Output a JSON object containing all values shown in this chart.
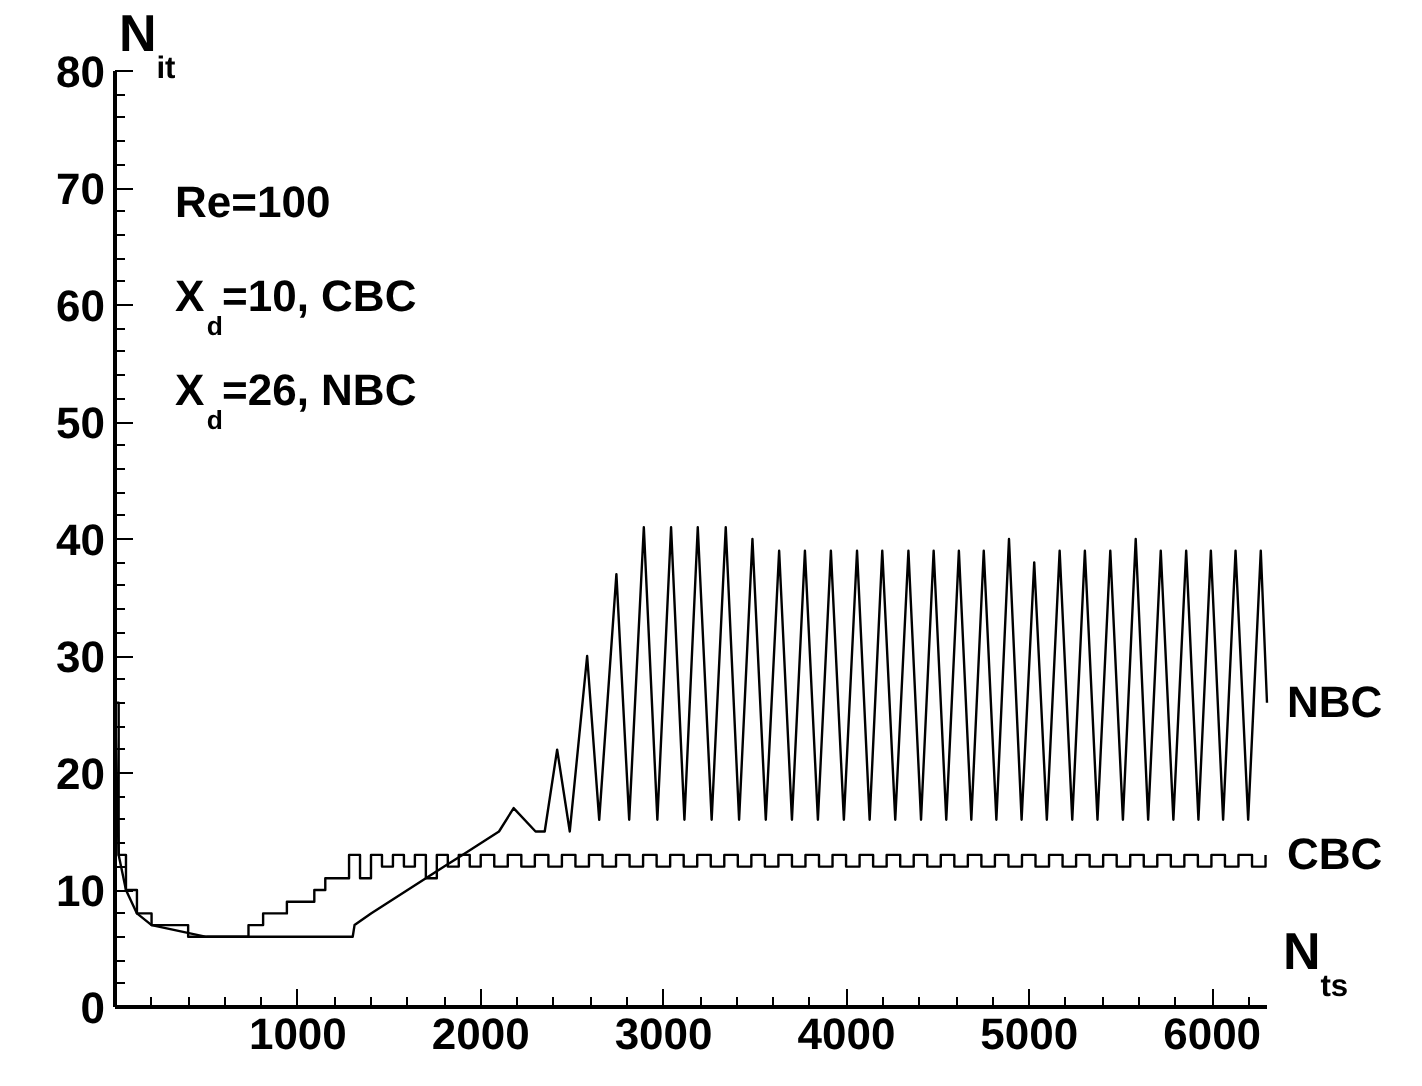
{
  "chart_data": {
    "type": "line",
    "xlabel": "N$_{ts}$",
    "ylabel": "N$_{it}$",
    "annotations": [
      "Re=100",
      "X$_{d}$=10, CBC",
      "X$_{d}$=26, NBC"
    ],
    "xlim": [
      0,
      6300
    ],
    "ylim": [
      0,
      80
    ],
    "xticks": [
      {
        "value": 200,
        "label": null
      },
      {
        "value": 400,
        "label": null
      },
      {
        "value": 600,
        "label": null
      },
      {
        "value": 800,
        "label": null
      },
      1000,
      {
        "value": 1200,
        "label": null
      },
      {
        "value": 1400,
        "label": null
      },
      {
        "value": 1600,
        "label": null
      },
      {
        "value": 1800,
        "label": null
      },
      2000,
      {
        "value": 2200,
        "label": null
      },
      {
        "value": 2400,
        "label": null
      },
      {
        "value": 2600,
        "label": null
      },
      {
        "value": 2800,
        "label": null
      },
      3000,
      {
        "value": 3200,
        "label": null
      },
      {
        "value": 3400,
        "label": null
      },
      {
        "value": 3600,
        "label": null
      },
      {
        "value": 3800,
        "label": null
      },
      4000,
      {
        "value": 4200,
        "label": null
      },
      {
        "value": 4400,
        "label": null
      },
      {
        "value": 4600,
        "label": null
      },
      {
        "value": 4800,
        "label": null
      },
      5000,
      {
        "value": 5200,
        "label": null
      },
      {
        "value": 5400,
        "label": null
      },
      {
        "value": 5600,
        "label": null
      },
      {
        "value": 5800,
        "label": null
      },
      6000,
      {
        "value": 6200,
        "label": null
      }
    ],
    "yticks": [
      0,
      {
        "value": 2,
        "label": null
      },
      {
        "value": 4,
        "label": null
      },
      {
        "value": 6,
        "label": null
      },
      {
        "value": 8,
        "label": null
      },
      10,
      {
        "value": 12,
        "label": null
      },
      {
        "value": 14,
        "label": null
      },
      {
        "value": 16,
        "label": null
      },
      {
        "value": 18,
        "label": null
      },
      20,
      {
        "value": 22,
        "label": null
      },
      {
        "value": 24,
        "label": null
      },
      {
        "value": 26,
        "label": null
      },
      {
        "value": 28,
        "label": null
      },
      30,
      {
        "value": 32,
        "label": null
      },
      {
        "value": 34,
        "label": null
      },
      {
        "value": 36,
        "label": null
      },
      {
        "value": 38,
        "label": null
      },
      40,
      {
        "value": 42,
        "label": null
      },
      {
        "value": 44,
        "label": null
      },
      {
        "value": 46,
        "label": null
      },
      {
        "value": 48,
        "label": null
      },
      50,
      {
        "value": 52,
        "label": null
      },
      {
        "value": 54,
        "label": null
      },
      {
        "value": 56,
        "label": null
      },
      {
        "value": 58,
        "label": null
      },
      60,
      {
        "value": 62,
        "label": null
      },
      {
        "value": 64,
        "label": null
      },
      {
        "value": 66,
        "label": null
      },
      {
        "value": 68,
        "label": null
      },
      70,
      {
        "value": 72,
        "label": null
      },
      {
        "value": 74,
        "label": null
      },
      {
        "value": 76,
        "label": null
      },
      {
        "value": 78,
        "label": null
      },
      80
    ],
    "grid": false,
    "legend": false,
    "marker": "none",
    "line_style": "solid",
    "series": [
      {
        "name": "NBC",
        "color": "#000000",
        "x": [
          0,
          20,
          60,
          120,
          200,
          500,
          1300,
          1310,
          1400,
          1500,
          1600,
          1700,
          1800,
          1900,
          2000,
          2100,
          2180,
          2300,
          2350,
          2418,
          2487,
          2582,
          2648,
          2742,
          2812,
          2892,
          2966,
          3041,
          3114,
          3187,
          3263,
          3340,
          3413,
          3486,
          3559,
          3632,
          3702,
          3773,
          3844,
          3915,
          3986,
          4058,
          4127,
          4196,
          4267,
          4339,
          4408,
          4477,
          4546,
          4615,
          4683,
          4751,
          4820,
          4889,
          4958,
          5027,
          5096,
          5166,
          5235,
          5304,
          5373,
          5443,
          5512,
          5582,
          5650,
          5719,
          5788,
          5858,
          5925,
          5993,
          6060,
          6128,
          6197,
          6266,
          6300
        ],
        "values": [
          26,
          13,
          10,
          8,
          7,
          6,
          6,
          7,
          8,
          9,
          10,
          11,
          12,
          13,
          14,
          15,
          17,
          15,
          15,
          22,
          15,
          30,
          16,
          37,
          16,
          41,
          16,
          41,
          16,
          41,
          16,
          41,
          16,
          40,
          16,
          39,
          16,
          39,
          16,
          39,
          16,
          39,
          16,
          39,
          16,
          39,
          16,
          39,
          16,
          39,
          16,
          39,
          16,
          40,
          16,
          38,
          16,
          39,
          16,
          39,
          16,
          39,
          16,
          40,
          16,
          39,
          16,
          39,
          16,
          39,
          16,
          39,
          16,
          39,
          26
        ]
      },
      {
        "name": "CBC",
        "color": "#000000",
        "type": "step",
        "x": [
          0,
          20,
          60,
          120,
          200,
          400,
          730,
          810,
          940,
          1090,
          1150,
          1280,
          1340,
          1400,
          1460,
          1520,
          1580,
          1640,
          1700,
          1760,
          1820,
          1880,
          1940,
          2000,
          2074,
          2148,
          2222,
          2296,
          2370,
          2444,
          2518,
          2592,
          2666,
          2740,
          2814,
          2888,
          2962,
          3036,
          3110,
          3184,
          3258,
          3332,
          3406,
          3480,
          3554,
          3628,
          3702,
          3776,
          3850,
          3924,
          3998,
          4072,
          4146,
          4220,
          4294,
          4368,
          4442,
          4516,
          4590,
          4664,
          4738,
          4812,
          4886,
          4960,
          5034,
          5108,
          5182,
          5256,
          5330,
          5404,
          5478,
          5552,
          5626,
          5700,
          5774,
          5848,
          5922,
          5996,
          6070,
          6144,
          6218,
          6292
        ],
        "values": [
          26,
          13,
          10,
          8,
          7,
          6,
          7,
          8,
          9,
          10,
          11,
          13,
          11,
          13,
          12,
          13,
          12,
          13,
          11,
          13,
          12,
          13,
          12,
          13,
          12,
          13,
          12,
          13,
          12,
          13,
          12,
          13,
          12,
          13,
          12,
          13,
          12,
          13,
          12,
          13,
          12,
          13,
          12,
          13,
          12,
          13,
          12,
          13,
          12,
          13,
          12,
          13,
          12,
          13,
          12,
          13,
          12,
          13,
          12,
          13,
          12,
          13,
          12,
          13,
          12,
          13,
          12,
          13,
          12,
          13,
          12,
          13,
          12,
          13,
          12,
          13,
          12,
          13,
          12,
          13,
          12,
          13
        ]
      }
    ]
  }
}
